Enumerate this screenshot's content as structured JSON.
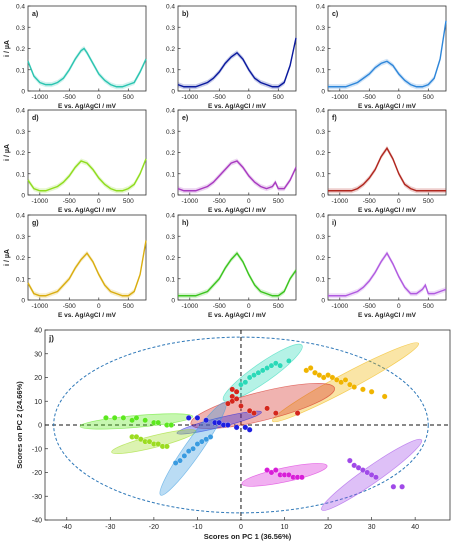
{
  "chart_data": [
    {
      "type": "line",
      "panel_label": "a)",
      "color": "#2bc4b0",
      "ylabel": "i / µA",
      "xlabel": "",
      "ylim": [
        0,
        0.4
      ],
      "xlim": [
        -1200,
        800
      ],
      "yticks": [
        "0",
        "0.1",
        "0.2",
        "0.3",
        "0.4"
      ],
      "xticks": [
        "-1000",
        "-500",
        "0",
        "500"
      ],
      "x": [
        -1200,
        -1100,
        -1000,
        -900,
        -800,
        -700,
        -600,
        -500,
        -400,
        -300,
        -250,
        -200,
        -100,
        0,
        100,
        200,
        300,
        400,
        500,
        600,
        700,
        800
      ],
      "y": [
        0.14,
        0.07,
        0.04,
        0.03,
        0.03,
        0.04,
        0.06,
        0.1,
        0.15,
        0.19,
        0.2,
        0.18,
        0.13,
        0.08,
        0.05,
        0.03,
        0.02,
        0.02,
        0.03,
        0.04,
        0.09,
        0.15
      ]
    },
    {
      "type": "line",
      "panel_label": "b)",
      "color": "#0b1a9e",
      "ylabel": "",
      "xlabel": "",
      "ylim": [
        0,
        0.4
      ],
      "xlim": [
        -1200,
        800
      ],
      "yticks": [
        "0",
        "0.1",
        "0.2",
        "0.3",
        "0.4"
      ],
      "xticks": [
        "-1000",
        "-500",
        "0",
        "500"
      ],
      "x": [
        -1200,
        -1100,
        -1000,
        -900,
        -800,
        -700,
        -600,
        -500,
        -400,
        -300,
        -200,
        -100,
        0,
        100,
        200,
        300,
        400,
        500,
        600,
        700,
        800
      ],
      "y": [
        0.03,
        0.02,
        0.02,
        0.02,
        0.03,
        0.04,
        0.06,
        0.09,
        0.13,
        0.16,
        0.18,
        0.15,
        0.1,
        0.06,
        0.04,
        0.03,
        0.02,
        0.02,
        0.04,
        0.12,
        0.25
      ]
    },
    {
      "type": "line",
      "panel_label": "c)",
      "color": "#2e86d9",
      "ylabel": "",
      "xlabel": "",
      "ylim": [
        0,
        0.4
      ],
      "xlim": [
        -1200,
        800
      ],
      "yticks": [
        "0",
        "0.1",
        "0.2",
        "0.3",
        "0.4"
      ],
      "xticks": [
        "-1000",
        "-500",
        "0",
        "500"
      ],
      "x": [
        -1200,
        -1100,
        -1000,
        -900,
        -800,
        -700,
        -600,
        -500,
        -400,
        -300,
        -200,
        -100,
        0,
        100,
        200,
        300,
        400,
        500,
        600,
        700,
        800
      ],
      "y": [
        0.02,
        0.02,
        0.02,
        0.02,
        0.03,
        0.04,
        0.06,
        0.08,
        0.11,
        0.13,
        0.14,
        0.12,
        0.08,
        0.05,
        0.03,
        0.02,
        0.02,
        0.03,
        0.06,
        0.15,
        0.33
      ]
    },
    {
      "type": "line",
      "panel_label": "d)",
      "color": "#8fdc1e",
      "ylabel": "i / µA",
      "xlabel": "",
      "ylim": [
        0,
        0.4
      ],
      "xlim": [
        -1200,
        800
      ],
      "yticks": [
        "0",
        "0.1",
        "0.2",
        "0.3",
        "0.4"
      ],
      "xticks": [
        "-1000",
        "-500",
        "0",
        "500"
      ],
      "x": [
        -1200,
        -1100,
        -1000,
        -900,
        -800,
        -700,
        -600,
        -500,
        -400,
        -300,
        -200,
        -100,
        0,
        100,
        200,
        300,
        400,
        500,
        600,
        700,
        800
      ],
      "y": [
        0.07,
        0.03,
        0.02,
        0.02,
        0.03,
        0.04,
        0.06,
        0.09,
        0.13,
        0.16,
        0.15,
        0.12,
        0.08,
        0.05,
        0.03,
        0.02,
        0.02,
        0.03,
        0.05,
        0.1,
        0.17
      ]
    },
    {
      "type": "line",
      "panel_label": "e)",
      "color": "#a83ac0",
      "ylabel": "",
      "xlabel": "",
      "ylim": [
        0,
        0.4
      ],
      "xlim": [
        -1200,
        800
      ],
      "yticks": [
        "0",
        "0.1",
        "0.2",
        "0.3",
        "0.4"
      ],
      "xticks": [
        "-1000",
        "-500",
        "0",
        "500"
      ],
      "x": [
        -1200,
        -1100,
        -1000,
        -900,
        -800,
        -700,
        -600,
        -500,
        -400,
        -300,
        -200,
        -100,
        0,
        100,
        200,
        300,
        400,
        450,
        500,
        600,
        700,
        800
      ],
      "y": [
        0.03,
        0.02,
        0.02,
        0.02,
        0.03,
        0.04,
        0.06,
        0.09,
        0.12,
        0.15,
        0.16,
        0.13,
        0.09,
        0.06,
        0.04,
        0.03,
        0.04,
        0.06,
        0.03,
        0.03,
        0.07,
        0.13
      ]
    },
    {
      "type": "line",
      "panel_label": "f)",
      "color": "#b0261e",
      "ylabel": "",
      "xlabel": "",
      "ylim": [
        0,
        0.4
      ],
      "xlim": [
        -1200,
        800
      ],
      "yticks": [
        "0",
        "0.1",
        "0.2",
        "0.3",
        "0.4"
      ],
      "xticks": [
        "-1000",
        "-500",
        "0",
        "500"
      ],
      "x": [
        -1200,
        -1100,
        -1000,
        -900,
        -800,
        -700,
        -600,
        -500,
        -400,
        -300,
        -200,
        -100,
        0,
        100,
        200,
        300,
        400,
        500,
        600,
        700,
        800
      ],
      "y": [
        0.02,
        0.02,
        0.02,
        0.02,
        0.02,
        0.03,
        0.05,
        0.08,
        0.12,
        0.18,
        0.22,
        0.17,
        0.1,
        0.05,
        0.03,
        0.02,
        0.02,
        0.02,
        0.02,
        0.02,
        0.02
      ]
    },
    {
      "type": "line",
      "panel_label": "g)",
      "color": "#d9ad10",
      "ylabel": "i / µA",
      "xlabel": "E vs. Ag/AgCl / mV",
      "ylim": [
        0,
        0.4
      ],
      "xlim": [
        -1200,
        800
      ],
      "yticks": [
        "0",
        "0.1",
        "0.2",
        "0.3",
        "0.4"
      ],
      "xticks": [
        "-1000",
        "-500",
        "0",
        "500"
      ],
      "x": [
        -1200,
        -1100,
        -1000,
        -900,
        -800,
        -700,
        -600,
        -500,
        -400,
        -300,
        -200,
        -100,
        0,
        100,
        200,
        300,
        400,
        500,
        600,
        700,
        800
      ],
      "y": [
        0.08,
        0.03,
        0.02,
        0.02,
        0.03,
        0.04,
        0.07,
        0.1,
        0.15,
        0.19,
        0.22,
        0.18,
        0.12,
        0.07,
        0.04,
        0.03,
        0.02,
        0.02,
        0.04,
        0.12,
        0.28
      ]
    },
    {
      "type": "line",
      "panel_label": "h)",
      "color": "#3bc41e",
      "ylabel": "",
      "xlabel": "E vs. Ag/AgCl / mV",
      "ylim": [
        0,
        0.4
      ],
      "xlim": [
        -1200,
        800
      ],
      "yticks": [
        "0",
        "0.1",
        "0.2",
        "0.3",
        "0.4"
      ],
      "xticks": [
        "-1000",
        "-500",
        "0",
        "500"
      ],
      "x": [
        -1200,
        -1100,
        -1000,
        -900,
        -800,
        -700,
        -600,
        -500,
        -400,
        -300,
        -200,
        -100,
        0,
        100,
        200,
        300,
        400,
        500,
        600,
        700,
        800
      ],
      "y": [
        0.02,
        0.02,
        0.02,
        0.02,
        0.03,
        0.04,
        0.07,
        0.1,
        0.15,
        0.19,
        0.22,
        0.18,
        0.12,
        0.07,
        0.04,
        0.03,
        0.02,
        0.02,
        0.04,
        0.1,
        0.14
      ]
    },
    {
      "type": "line",
      "panel_label": "i)",
      "color": "#b05ae0",
      "ylabel": "",
      "xlabel": "E vs. Ag/AgCl / mV",
      "ylim": [
        0,
        0.4
      ],
      "xlim": [
        -1200,
        800
      ],
      "yticks": [
        "0",
        "0.1",
        "0.2",
        "0.3",
        "0.4"
      ],
      "xticks": [
        "-1000",
        "-500",
        "0",
        "500"
      ],
      "x": [
        -1200,
        -1100,
        -1000,
        -900,
        -800,
        -700,
        -600,
        -500,
        -400,
        -300,
        -200,
        -100,
        0,
        100,
        200,
        300,
        400,
        450,
        500,
        600,
        700,
        800
      ],
      "y": [
        0.02,
        0.02,
        0.02,
        0.02,
        0.03,
        0.04,
        0.06,
        0.09,
        0.13,
        0.18,
        0.22,
        0.17,
        0.11,
        0.06,
        0.03,
        0.03,
        0.05,
        0.07,
        0.03,
        0.03,
        0.04,
        0.05
      ]
    },
    {
      "type": "scatter",
      "panel_label": "j)",
      "xlabel": "Scores on PC 1 (36.56%)",
      "ylabel": "Scores on PC 2 (24.66%)",
      "xlim": [
        -45,
        48
      ],
      "ylim": [
        -40,
        40
      ],
      "xticks": [
        "-40",
        "-30",
        "-20",
        "-10",
        "0",
        "10",
        "20",
        "30",
        "40"
      ],
      "yticks": [
        "-40",
        "-30",
        "-20",
        "-10",
        "0",
        "10",
        "20",
        "30",
        "40"
      ],
      "confidence_ellipse": {
        "color": "#2e78b8",
        "cx": 0,
        "cy": 0,
        "rx": 43,
        "ry": 37
      },
      "series": [
        {
          "color": "#2bd9b8",
          "points": [
            [
              0,
              17
            ],
            [
              1,
              18
            ],
            [
              2,
              20
            ],
            [
              3,
              21
            ],
            [
              4,
              22
            ],
            [
              5,
              23
            ],
            [
              6,
              24
            ],
            [
              7,
              25
            ],
            [
              8,
              26
            ],
            [
              9,
              25
            ],
            [
              11,
              27
            ]
          ],
          "ellipse": {
            "cx": 5,
            "cy": 22,
            "rx": 11,
            "ry": 4,
            "angle": -35
          }
        },
        {
          "color": "#f0b400",
          "points": [
            [
              15,
              23
            ],
            [
              16,
              24
            ],
            [
              17,
              22
            ],
            [
              18,
              21
            ],
            [
              19,
              20
            ],
            [
              20,
              21
            ],
            [
              21,
              20
            ],
            [
              22,
              19
            ],
            [
              23,
              18
            ],
            [
              24,
              19
            ],
            [
              25,
              17
            ],
            [
              26,
              16
            ],
            [
              28,
              15
            ],
            [
              30,
              14
            ],
            [
              33,
              12
            ]
          ],
          "ellipse": {
            "cx": 24,
            "cy": 18,
            "rx": 19,
            "ry": 3.5,
            "angle": -28
          }
        },
        {
          "color": "#d4261c",
          "points": [
            [
              -2,
              15
            ],
            [
              -2,
              12
            ],
            [
              -2,
              10
            ],
            [
              -1,
              11
            ],
            [
              -1,
              14
            ],
            [
              -3,
              9
            ],
            [
              0,
              8
            ],
            [
              2,
              6
            ],
            [
              3,
              5
            ],
            [
              6,
              7
            ],
            [
              8,
              5
            ],
            [
              13,
              5
            ]
          ],
          "ellipse": {
            "cx": 5,
            "cy": 8,
            "rx": 17,
            "ry": 6,
            "angle": -14
          }
        },
        {
          "color": "#5ce81e",
          "points": [
            [
              -31,
              3
            ],
            [
              -29,
              3
            ],
            [
              -27,
              3
            ],
            [
              -25,
              2
            ],
            [
              -24,
              3
            ],
            [
              -22,
              2
            ],
            [
              -20,
              1
            ],
            [
              -19,
              1
            ],
            [
              -17,
              0
            ],
            [
              -16,
              0
            ]
          ],
          "ellipse": {
            "cx": -24,
            "cy": 1.5,
            "rx": 13,
            "ry": 2.5,
            "angle": -5
          }
        },
        {
          "color": "#1e1ee0",
          "points": [
            [
              -12,
              3
            ],
            [
              -10,
              3
            ],
            [
              -8,
              2
            ],
            [
              -6,
              1
            ],
            [
              -5,
              1
            ],
            [
              -4,
              0
            ],
            [
              -3,
              0
            ],
            [
              -1,
              -1
            ],
            [
              1,
              -1
            ],
            [
              2,
              -2
            ]
          ],
          "ellipse": {
            "cx": -5,
            "cy": 1,
            "rx": 10,
            "ry": 2,
            "angle": -14
          }
        },
        {
          "color": "#9bdc20",
          "points": [
            [
              -25,
              -5
            ],
            [
              -24,
              -5
            ],
            [
              -23,
              -6
            ],
            [
              -22,
              -7
            ],
            [
              -21,
              -7
            ],
            [
              -20,
              -8
            ],
            [
              -19,
              -8
            ],
            [
              -18,
              -9
            ],
            [
              -17,
              -9
            ]
          ],
          "ellipse": {
            "cx": -20,
            "cy": -7,
            "rx": 10,
            "ry": 2.5,
            "angle": -14
          }
        },
        {
          "color": "#3a9be0",
          "points": [
            [
              -7,
              -5
            ],
            [
              -8,
              -6
            ],
            [
              -9,
              -7
            ],
            [
              -10,
              -8
            ],
            [
              -11,
              -10
            ],
            [
              -12,
              -11
            ],
            [
              -13,
              -13
            ],
            [
              -14,
              -15
            ],
            [
              -15,
              -16
            ]
          ],
          "ellipse": {
            "cx": -11,
            "cy": -10,
            "rx": 13,
            "ry": 3.5,
            "angle": -55
          }
        },
        {
          "color": "#d81ed8",
          "points": [
            [
              6,
              -19
            ],
            [
              7,
              -20
            ],
            [
              8,
              -19
            ],
            [
              9,
              -21
            ],
            [
              10,
              -21
            ],
            [
              11,
              -21
            ],
            [
              12,
              -22
            ],
            [
              13,
              -22
            ],
            [
              14,
              -22
            ]
          ],
          "ellipse": {
            "cx": 10,
            "cy": -21,
            "rx": 10,
            "ry": 3,
            "angle": -12
          }
        },
        {
          "color": "#a04ae8",
          "points": [
            [
              25,
              -15
            ],
            [
              26,
              -17
            ],
            [
              27,
              -18
            ],
            [
              28,
              -19
            ],
            [
              29,
              -20
            ],
            [
              30,
              -21
            ],
            [
              31,
              -22
            ],
            [
              35,
              -26
            ],
            [
              37,
              -26
            ]
          ],
          "ellipse": {
            "cx": 30,
            "cy": -21,
            "rx": 14,
            "ry": 3.5,
            "angle": -35
          }
        }
      ]
    }
  ]
}
